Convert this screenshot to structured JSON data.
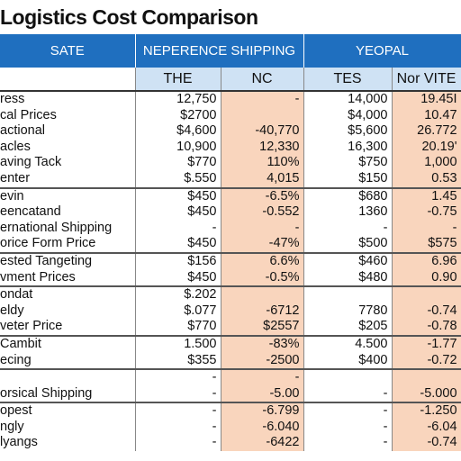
{
  "title": "Logistics Cost Comparison",
  "header": {
    "corner": "SATE",
    "groups": [
      "NEPERENCE SHIPPING",
      "YEOPAL"
    ],
    "columns": [
      "THE",
      "NC",
      "TES",
      "Nor VITE"
    ]
  },
  "table": {
    "rows": [
      [
        "ress",
        "12,750",
        "-",
        "14,000",
        "19.45I"
      ],
      [
        "cal Prices",
        "$2700",
        null,
        "$4,000",
        "10.47"
      ],
      [
        "actional",
        "$4,600",
        "-40,770",
        "$5,600",
        "26.772"
      ],
      [
        "acles",
        "10,900",
        "12,330",
        "16,300",
        "20.19'"
      ],
      [
        "aving Tack",
        "$770",
        "110%",
        "$750",
        "1,000"
      ],
      [
        "enter",
        "$.550",
        "4,015",
        "$150",
        "0.53"
      ],
      [
        "evin",
        "$450",
        "-6.5%",
        "$680",
        "1.45"
      ],
      [
        "eencatand",
        "$450",
        "-0.552",
        "1360",
        "-0.75"
      ],
      [
        "ernational Shipping",
        "-",
        "-",
        "-",
        "-"
      ],
      [
        "orice Form Price",
        "$450",
        "-47%",
        "$500",
        "$575"
      ],
      [
        "ested Tangeting",
        "$156",
        "6.6%",
        "$460",
        "6.96"
      ],
      [
        "vment Prices",
        "$450",
        "-0.5%",
        "$480",
        "0.90"
      ],
      [
        "ondat",
        "$.202",
        null,
        null,
        null
      ],
      [
        "eldy",
        "$.077",
        "-6712",
        "7780",
        "-0.74"
      ],
      [
        "veter Price",
        "$770",
        "$2557",
        "$205",
        "-0.78"
      ],
      [
        "Cambit",
        "1.500",
        "-83%",
        "4.500",
        "-1.77"
      ],
      [
        "ecing",
        "$355",
        "-2500",
        "$400",
        "-0.72"
      ],
      [
        null,
        "-",
        "-",
        null,
        null
      ],
      [
        "orsical Shipping",
        "-",
        "-5.00",
        "-",
        "-5.000"
      ],
      [
        "opest",
        "-",
        "-6.799",
        "-",
        "-1.250"
      ],
      [
        "ngly",
        "-",
        "-6.040",
        "-",
        "-6.04"
      ],
      [
        "lyangs",
        "-",
        "-6422",
        "-",
        "-0.74"
      ]
    ]
  }
}
